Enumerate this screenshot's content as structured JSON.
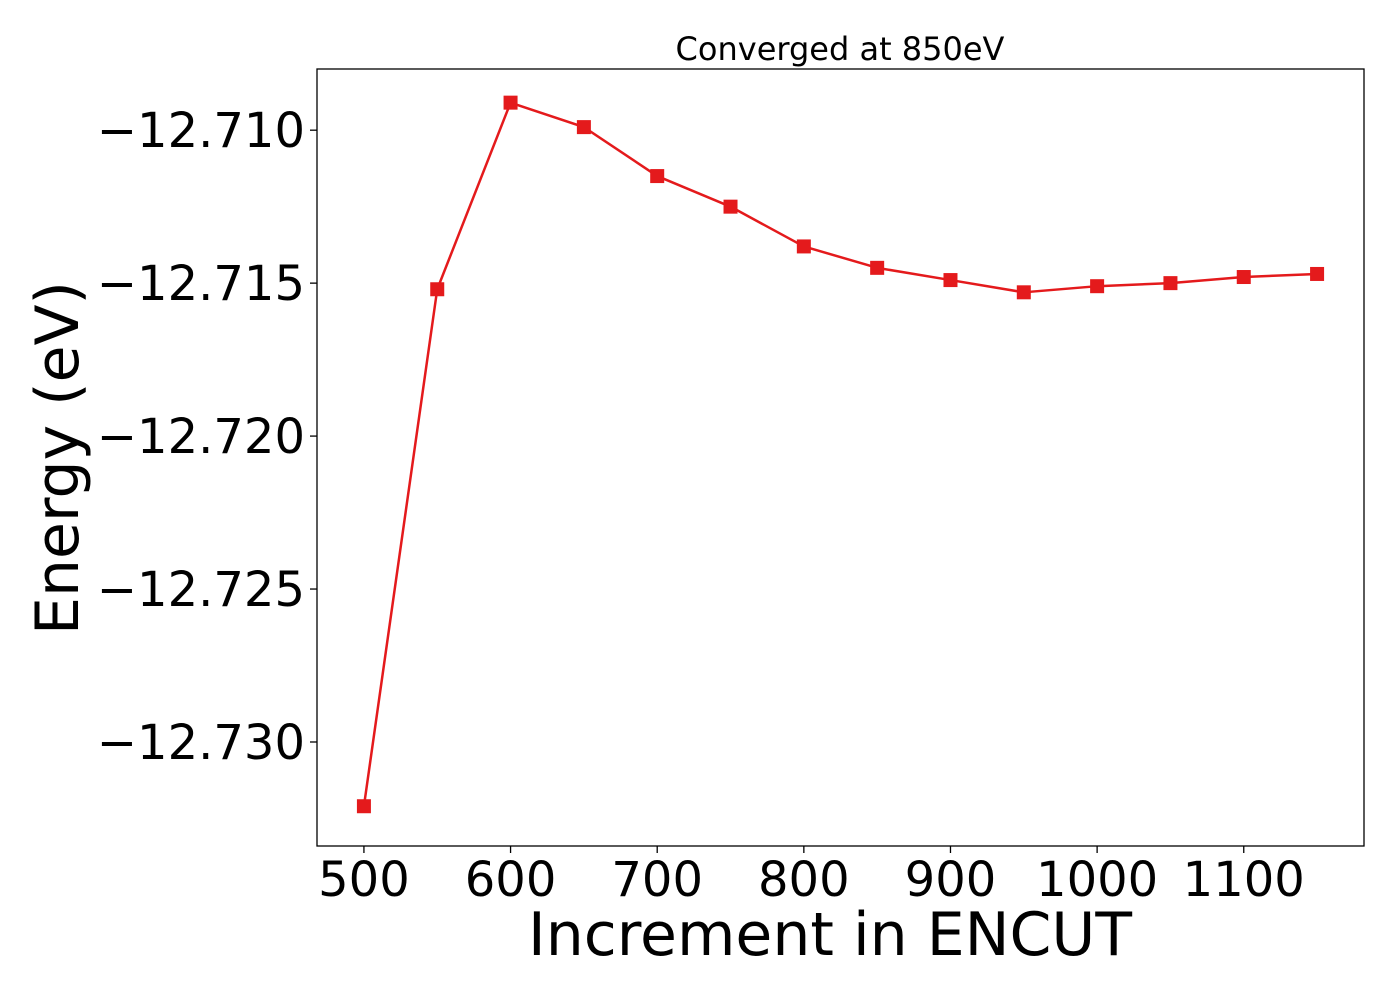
{
  "chart_data": {
    "type": "line",
    "title": "Converged at 850eV",
    "xlabel": "Increment in ENCUT",
    "ylabel": "Energy (eV)",
    "x": [
      500,
      550,
      600,
      650,
      700,
      750,
      800,
      850,
      900,
      950,
      1000,
      1050,
      1100,
      1150
    ],
    "series": [
      {
        "values": [
          -12.7321,
          -12.7152,
          -12.7091,
          -12.7099,
          -12.7115,
          -12.7125,
          -12.7138,
          -12.7145,
          -12.7149,
          -12.7153,
          -12.7151,
          -12.715,
          -12.7148,
          -12.7147
        ],
        "color": "#e41a1c",
        "marker": "square"
      }
    ],
    "xlim": [
      468,
      1182
    ],
    "ylim": [
      -12.7334,
      -12.708
    ],
    "xticks": [
      500,
      600,
      700,
      800,
      900,
      1000,
      1100
    ],
    "xtick_labels": [
      "500",
      "600",
      "700",
      "800",
      "900",
      "1000",
      "1100"
    ],
    "yticks": [
      -12.71,
      -12.715,
      -12.72,
      -12.725,
      -12.73
    ],
    "ytick_labels": [
      "−12.710",
      "−12.715",
      "−12.720",
      "−12.725",
      "−12.730"
    ],
    "grid": false,
    "legend": "none"
  }
}
